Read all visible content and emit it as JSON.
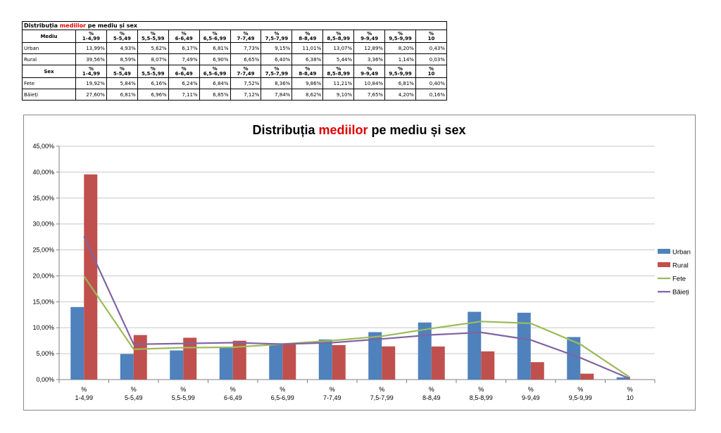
{
  "table": {
    "title_pre": "Distribuția ",
    "title_red": "mediilor",
    "title_post": " pe mediu și sex",
    "header1_label": "Mediu",
    "header2_label": "Sex",
    "bins": [
      [
        "%",
        "1-4,99"
      ],
      [
        "%",
        "5-5,49"
      ],
      [
        "%",
        "5,5-5,99"
      ],
      [
        "%",
        "6-6,49"
      ],
      [
        "%",
        "6,5-6,99"
      ],
      [
        "%",
        "7-7,49"
      ],
      [
        "%",
        "7,5-7,99"
      ],
      [
        "%",
        "8-8,49"
      ],
      [
        "%",
        "8,5-8,99"
      ],
      [
        "%",
        "9-9,49"
      ],
      [
        "%",
        "9,5-9,99"
      ],
      [
        "%",
        "10"
      ]
    ],
    "rows_mediu": [
      {
        "label": "Urban",
        "values": [
          "13,99%",
          "4,93%",
          "5,62%",
          "6,17%",
          "6,81%",
          "7,73%",
          "9,15%",
          "11,01%",
          "13,07%",
          "12,89%",
          "8,20%",
          "0,43%"
        ]
      },
      {
        "label": "Rural",
        "values": [
          "39,56%",
          "8,59%",
          "8,07%",
          "7,49%",
          "6,90%",
          "6,65%",
          "6,40%",
          "6,38%",
          "5,44%",
          "3,36%",
          "1,14%",
          "0,03%"
        ]
      }
    ],
    "rows_sex": [
      {
        "label": "Fete",
        "values": [
          "19,92%",
          "5,84%",
          "6,16%",
          "6,24%",
          "6,84%",
          "7,52%",
          "8,36%",
          "9,86%",
          "11,21%",
          "10,84%",
          "6,81%",
          "0,40%"
        ]
      },
      {
        "label": "Băieți",
        "values": [
          "27,60%",
          "6,81%",
          "6,96%",
          "7,11%",
          "6,85%",
          "7,12%",
          "7,84%",
          "8,62%",
          "9,10%",
          "7,65%",
          "4,20%",
          "0,16%"
        ]
      }
    ]
  },
  "chart_data": {
    "type": "bar",
    "title_pre": "Distribuția ",
    "title_red": "mediilor",
    "title_post": " pe mediu și sex",
    "categories": [
      [
        "%",
        "1-4,99"
      ],
      [
        "%",
        "5-5,49"
      ],
      [
        "%",
        "5,5-5,99"
      ],
      [
        "%",
        "6-6,49"
      ],
      [
        "%",
        "6,5-6,99"
      ],
      [
        "%",
        "7-7,49"
      ],
      [
        "%",
        "7,5-7,99"
      ],
      [
        "%",
        "8-8,49"
      ],
      [
        "%",
        "8,5-8,99"
      ],
      [
        "%",
        "9-9,49"
      ],
      [
        "%",
        "9,5-9,99"
      ],
      [
        "%",
        "10"
      ]
    ],
    "ylim": [
      0,
      45
    ],
    "yticks": [
      "0,00%",
      "5,00%",
      "10,00%",
      "15,00%",
      "20,00%",
      "25,00%",
      "30,00%",
      "35,00%",
      "40,00%",
      "45,00%"
    ],
    "grid": true,
    "legend_position": "right",
    "series": [
      {
        "name": "Urban",
        "kind": "bar",
        "color": "#4f81bd",
        "values": [
          13.99,
          4.93,
          5.62,
          6.17,
          6.81,
          7.73,
          9.15,
          11.01,
          13.07,
          12.89,
          8.2,
          0.43
        ]
      },
      {
        "name": "Rural",
        "kind": "bar",
        "color": "#c0504d",
        "values": [
          39.56,
          8.59,
          8.07,
          7.49,
          6.9,
          6.65,
          6.4,
          6.38,
          5.44,
          3.36,
          1.14,
          0.03
        ]
      },
      {
        "name": "Fete",
        "kind": "line",
        "color": "#9bbb59",
        "values": [
          19.92,
          5.84,
          6.16,
          6.24,
          6.84,
          7.52,
          8.36,
          9.86,
          11.21,
          10.84,
          6.81,
          0.4
        ]
      },
      {
        "name": "Băieți",
        "kind": "line",
        "color": "#8064a2",
        "values": [
          27.6,
          6.81,
          6.96,
          7.11,
          6.85,
          7.12,
          7.84,
          8.62,
          9.1,
          7.65,
          4.2,
          0.16
        ]
      }
    ]
  }
}
